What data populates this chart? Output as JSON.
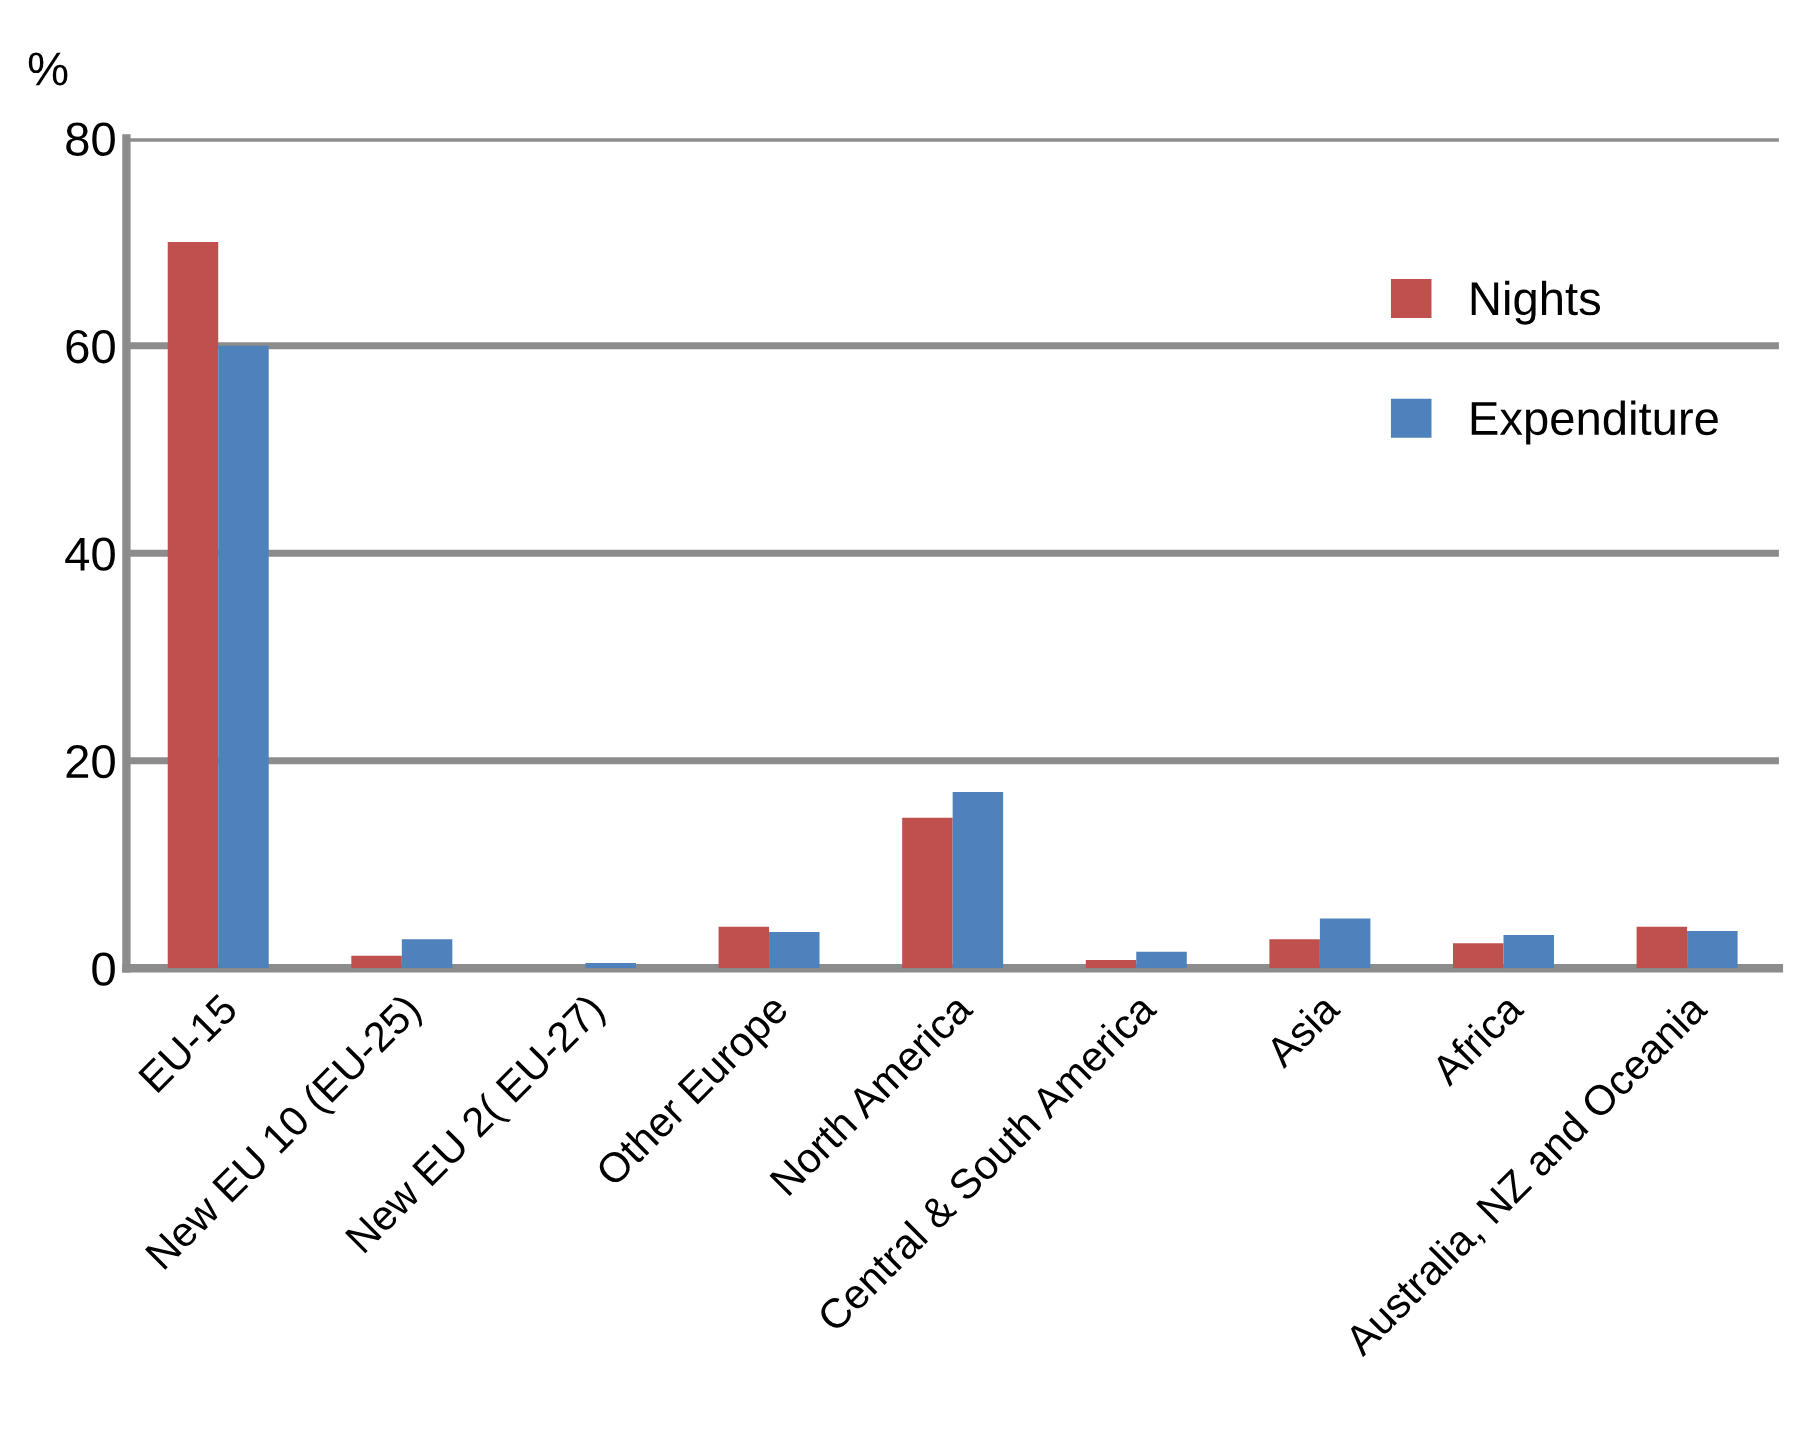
{
  "chart_data": {
    "type": "bar",
    "ylabel": "%",
    "categories": [
      "EU-15",
      "New EU 10 (EU-25)",
      "New EU 2( EU-27)",
      "Other Europe",
      "North America",
      "Central & South America",
      "Asia",
      "Africa",
      "Australia, NZ and Oceania"
    ],
    "series": [
      {
        "name": "Nights",
        "color": "#c0504d",
        "values": [
          70,
          1.2,
          0,
          4,
          14.5,
          0.8,
          2.8,
          2.4,
          4
        ]
      },
      {
        "name": "Expenditure",
        "color": "#4f81bd",
        "values": [
          60,
          2.8,
          0.5,
          3.5,
          17,
          1.6,
          4.8,
          3.2,
          3.6
        ]
      }
    ],
    "ylim": [
      0,
      80
    ],
    "yticks": [
      0,
      20,
      40,
      60,
      80
    ],
    "grid": "y",
    "legend": "top right"
  }
}
